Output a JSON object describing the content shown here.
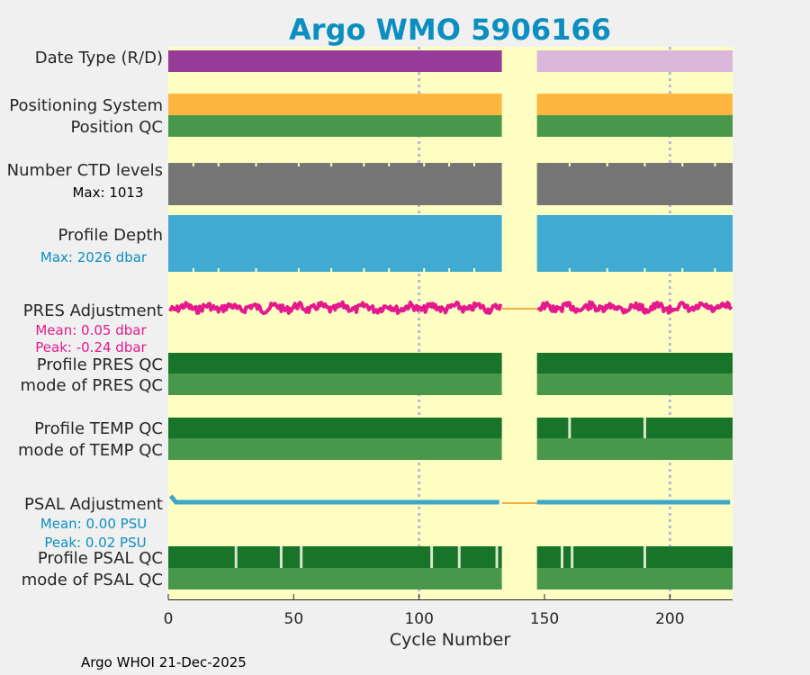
{
  "chart_data": {
    "type": "status-strips",
    "title": "Argo WMO 5906166",
    "xlabel": "Cycle Number",
    "xlim": [
      0,
      225
    ],
    "xticks": [
      0,
      50,
      100,
      150,
      200
    ],
    "gridlines_x": [
      100,
      200
    ],
    "data_gap": [
      133,
      147
    ],
    "footer": "Argo WHOI 21-Dec-2025",
    "colors": {
      "title": "#0a8fc0",
      "background": "#fefec3",
      "page": "#f0f0f0",
      "delayed_mode": "#983b98",
      "realtime_mode": "#dbb8da",
      "positioning": "#fdb640",
      "qc_good": "#49974a",
      "qc_profile_a": "#177428",
      "ctd": "#757575",
      "depth": "#40aad0",
      "pres_adj": "#e5198e",
      "psal_adj": "#3ca6cb",
      "zero_line": "#f0b040",
      "qc_mark": "#d8e8c8",
      "grid": "#b8b8d8"
    },
    "rows": [
      {
        "key": "date_type",
        "label": "Date Type (R/D)",
        "segments": [
          {
            "from": 0,
            "to": 133,
            "value": "D"
          },
          {
            "from": 147,
            "to": 225,
            "value": "R"
          }
        ]
      },
      {
        "key": "positioning",
        "label": "Positioning System",
        "segments": [
          {
            "from": 0,
            "to": 133,
            "value": "GPS"
          },
          {
            "from": 147,
            "to": 225,
            "value": "GPS"
          }
        ]
      },
      {
        "key": "position_qc",
        "label": "Position QC",
        "segments": [
          {
            "from": 0,
            "to": 133,
            "value": "1"
          },
          {
            "from": 147,
            "to": 225,
            "value": "1"
          }
        ]
      },
      {
        "key": "ctd_levels",
        "label": "Number CTD levels",
        "sublabel": "Max: 1013",
        "max": 1013,
        "dips_at": [
          10,
          20,
          35,
          52,
          65,
          78,
          88,
          102,
          112,
          122,
          160,
          175,
          190,
          205,
          218
        ],
        "segments": [
          {
            "from": 0,
            "to": 133
          },
          {
            "from": 147,
            "to": 225
          }
        ]
      },
      {
        "key": "profile_depth",
        "label": "Profile Depth",
        "sublabel": "Max: 2026 dbar",
        "max_dbar": 2026,
        "dips_at": [
          10,
          20,
          35,
          52,
          65,
          78,
          88,
          102,
          112,
          122,
          160,
          175,
          190,
          205,
          218
        ],
        "segments": [
          {
            "from": 0,
            "to": 133
          },
          {
            "from": 147,
            "to": 225
          }
        ]
      },
      {
        "key": "pres_adjustment",
        "label": "PRES Adjustment",
        "sublabel": "Mean: 0.05 dbar",
        "sublabel2": "Peak: -0.24 dbar",
        "mean_dbar": 0.05,
        "peak_dbar": -0.24
      },
      {
        "key": "profile_pres_qc",
        "label": "Profile PRES QC",
        "segments": [
          {
            "from": 0,
            "to": 133,
            "value": "A"
          },
          {
            "from": 147,
            "to": 225,
            "value": "A"
          }
        ]
      },
      {
        "key": "mode_pres_qc",
        "label": "mode of PRES QC",
        "segments": [
          {
            "from": 0,
            "to": 133,
            "value": "1"
          },
          {
            "from": 147,
            "to": 225,
            "value": "1"
          }
        ]
      },
      {
        "key": "profile_temp_qc",
        "label": "Profile TEMP QC",
        "marks_at": [
          160,
          190
        ],
        "segments": [
          {
            "from": 0,
            "to": 133,
            "value": "A"
          },
          {
            "from": 147,
            "to": 225,
            "value": "A"
          }
        ]
      },
      {
        "key": "mode_temp_qc",
        "label": "mode of TEMP QC",
        "segments": [
          {
            "from": 0,
            "to": 133,
            "value": "1"
          },
          {
            "from": 147,
            "to": 225,
            "value": "1"
          }
        ]
      },
      {
        "key": "psal_adjustment",
        "label": "PSAL Adjustment",
        "sublabel": "Mean: 0.00 PSU",
        "sublabel2": "Peak: 0.02 PSU",
        "mean_psu": 0.0,
        "peak_psu": 0.02
      },
      {
        "key": "profile_psal_qc",
        "label": "Profile PSAL QC",
        "marks_at": [
          27,
          45,
          53,
          105,
          116,
          131,
          157,
          161,
          190
        ],
        "segments": [
          {
            "from": 0,
            "to": 133,
            "value": "A"
          },
          {
            "from": 147,
            "to": 225,
            "value": "A"
          }
        ]
      },
      {
        "key": "mode_psal_qc",
        "label": "mode of PSAL QC",
        "segments": [
          {
            "from": 0,
            "to": 133,
            "value": "1"
          },
          {
            "from": 147,
            "to": 225,
            "value": "1"
          }
        ]
      }
    ]
  }
}
